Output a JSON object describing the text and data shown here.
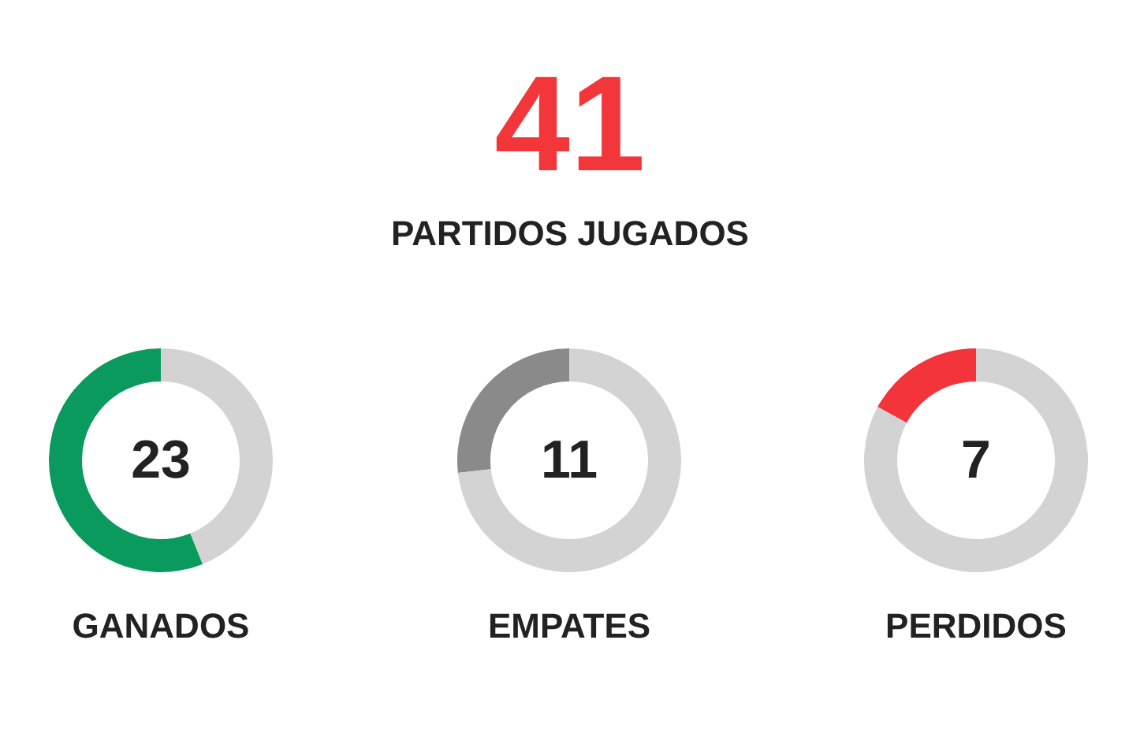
{
  "chart_data": [
    {
      "type": "other",
      "title": "41",
      "subtitle": "PARTIDOS JUGADOS",
      "color": "#f2363a"
    },
    {
      "type": "donut",
      "title": "GANADOS",
      "categories": [
        null,
        null
      ],
      "values": [
        56.1,
        43.9
      ],
      "colors": [
        "#0b9a5e",
        "#d3d3d3"
      ],
      "annotations": [
        "23"
      ]
    },
    {
      "type": "donut",
      "title": "EMPATES",
      "categories": [
        null,
        null
      ],
      "values": [
        26.8,
        73.2
      ],
      "colors": [
        "#8a8a8a",
        "#d3d3d3"
      ],
      "annotations": [
        "11"
      ]
    },
    {
      "type": "donut",
      "title": "PERDIDOS",
      "categories": [
        null,
        null
      ],
      "values": [
        17.1,
        82.9
      ],
      "colors": [
        "#f3343a",
        "#d3d3d3"
      ],
      "annotations": [
        "7"
      ]
    }
  ]
}
